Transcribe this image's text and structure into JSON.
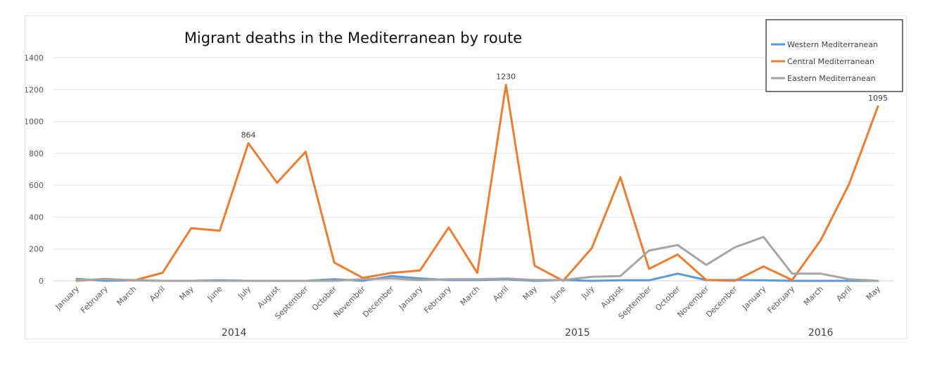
{
  "chart_data": {
    "type": "line",
    "title": "Migrant deaths in the Mediterranean by route",
    "ylim": [
      0,
      1400
    ],
    "yticks": [
      0,
      200,
      400,
      600,
      800,
      1000,
      1200,
      1400
    ],
    "grid": true,
    "legend_position": "top-right",
    "categories": [
      "January",
      "February",
      "March",
      "April",
      "May",
      "June",
      "July",
      "August",
      "September",
      "October",
      "November",
      "December",
      "January",
      "February",
      "March",
      "April",
      "May",
      "June",
      "July",
      "August",
      "September",
      "October",
      "November",
      "December",
      "January",
      "February",
      "March",
      "April",
      "May"
    ],
    "years": [
      {
        "label": "2014",
        "start": 0,
        "end": 11
      },
      {
        "label": "2015",
        "start": 12,
        "end": 23
      },
      {
        "label": "2016",
        "start": 24,
        "end": 28
      }
    ],
    "series": [
      {
        "name": "Western Mediterranean",
        "color": "#5b9bd5",
        "values": [
          12,
          0,
          3,
          0,
          0,
          4,
          0,
          0,
          0,
          10,
          0,
          30,
          15,
          5,
          5,
          10,
          0,
          5,
          0,
          3,
          3,
          45,
          5,
          5,
          3,
          0,
          0,
          0,
          0
        ]
      },
      {
        "name": "Central Mediterranean",
        "color": "#ed7d31",
        "values": [
          0,
          12,
          2,
          50,
          330,
          315,
          864,
          615,
          810,
          115,
          18,
          50,
          65,
          335,
          50,
          1230,
          95,
          0,
          205,
          650,
          75,
          165,
          5,
          0,
          90,
          5,
          255,
          610,
          1095
        ]
      },
      {
        "name": "Eastern Mediterranean",
        "color": "#a5a5a5",
        "values": [
          5,
          10,
          5,
          0,
          0,
          0,
          0,
          0,
          0,
          0,
          10,
          15,
          5,
          10,
          10,
          15,
          5,
          5,
          25,
          30,
          190,
          225,
          100,
          210,
          275,
          45,
          45,
          10,
          0
        ]
      }
    ],
    "annotations": [
      {
        "series": 1,
        "index": 6,
        "text": "864"
      },
      {
        "series": 1,
        "index": 15,
        "text": "1230"
      },
      {
        "series": 1,
        "index": 28,
        "text": "1095"
      }
    ]
  }
}
